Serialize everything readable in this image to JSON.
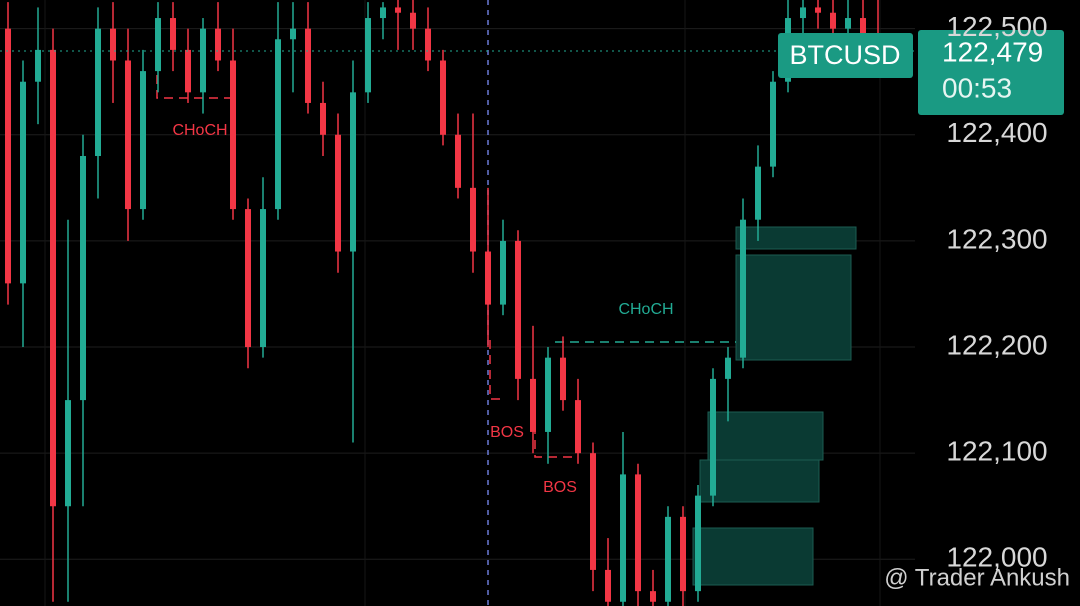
{
  "chart_data": {
    "type": "candlestick",
    "symbol": "BTCUSD",
    "last_price": {
      "value": 122479,
      "label": "122,479"
    },
    "countdown": "00:53",
    "up_color": "#22ab94",
    "down_color": "#f23645",
    "ylim": [
      121956,
      122527
    ],
    "yticks": [
      {
        "value": 122000,
        "label": "122,000"
      },
      {
        "value": 122100,
        "label": "122,100"
      },
      {
        "value": 122200,
        "label": "122,200"
      },
      {
        "value": 122300,
        "label": "122,300"
      },
      {
        "value": 122400,
        "label": "122,400"
      },
      {
        "value": 122500,
        "label": "122,500"
      }
    ],
    "grid": true,
    "open": [
      122500,
      122260,
      122450,
      122480,
      122050,
      122150,
      122380,
      122500,
      122470,
      122330,
      122460,
      122510,
      122480,
      122440,
      122500,
      122470,
      122330,
      122200,
      122330,
      122490,
      122500,
      122430,
      122400,
      122290,
      122440,
      122510,
      122520,
      122515,
      122500,
      122470,
      122400,
      122350,
      122290,
      122240,
      122300,
      122170,
      122120,
      122190,
      122150,
      122100,
      121990,
      121960,
      122080,
      121970,
      121960,
      122040,
      121970,
      122060,
      122170,
      122190,
      122320,
      122370,
      122450,
      122510,
      122520,
      122515,
      122500,
      122510,
      122490
    ],
    "high": [
      122525,
      122470,
      122520,
      122500,
      122320,
      122400,
      122520,
      122525,
      122500,
      122480,
      122525,
      122525,
      122500,
      122510,
      122525,
      122500,
      122340,
      122360,
      122525,
      122525,
      122525,
      122450,
      122420,
      122470,
      122525,
      122525,
      122527,
      122527,
      122520,
      122480,
      122420,
      122420,
      122350,
      122320,
      122310,
      122220,
      122200,
      122210,
      122170,
      122110,
      122020,
      122120,
      122090,
      121990,
      122050,
      122050,
      122070,
      122180,
      122200,
      122340,
      122390,
      122460,
      122527,
      122527,
      122527,
      122527,
      122527,
      122527,
      122527
    ],
    "low": [
      122240,
      122200,
      122410,
      121960,
      121960,
      122050,
      122340,
      122430,
      122300,
      122320,
      122440,
      122460,
      122430,
      122420,
      122460,
      122320,
      122180,
      122190,
      122320,
      122440,
      122420,
      122380,
      122270,
      122110,
      122430,
      122490,
      122480,
      122480,
      122460,
      122390,
      122340,
      122270,
      122200,
      122230,
      122150,
      122100,
      122090,
      122140,
      122090,
      121970,
      121956,
      121956,
      121956,
      121956,
      121956,
      121956,
      121960,
      122050,
      122130,
      122180,
      122300,
      122360,
      122440,
      122490,
      122500,
      122495,
      122470,
      122480,
      122470
    ],
    "close": [
      122260,
      122450,
      122480,
      122050,
      122150,
      122380,
      122500,
      122470,
      122330,
      122460,
      122510,
      122480,
      122440,
      122500,
      122470,
      122330,
      122200,
      122330,
      122490,
      122500,
      122430,
      122400,
      122290,
      122440,
      122510,
      122520,
      122515,
      122500,
      122470,
      122400,
      122350,
      122290,
      122240,
      122300,
      122170,
      122120,
      122190,
      122150,
      122100,
      121990,
      121960,
      122080,
      121970,
      121960,
      122040,
      121970,
      122060,
      122170,
      122190,
      122320,
      122370,
      122450,
      122510,
      122520,
      122515,
      122500,
      122510,
      122490,
      122479
    ],
    "annotations": [
      {
        "text": "CHoCH",
        "color": "#f23645"
      },
      {
        "text": "BOS",
        "color": "#f23645"
      },
      {
        "text": "BOS",
        "color": "#f23645"
      },
      {
        "text": "CHoCH",
        "color": "#22ab94"
      }
    ],
    "watermark": "@ Trader Ankush"
  }
}
